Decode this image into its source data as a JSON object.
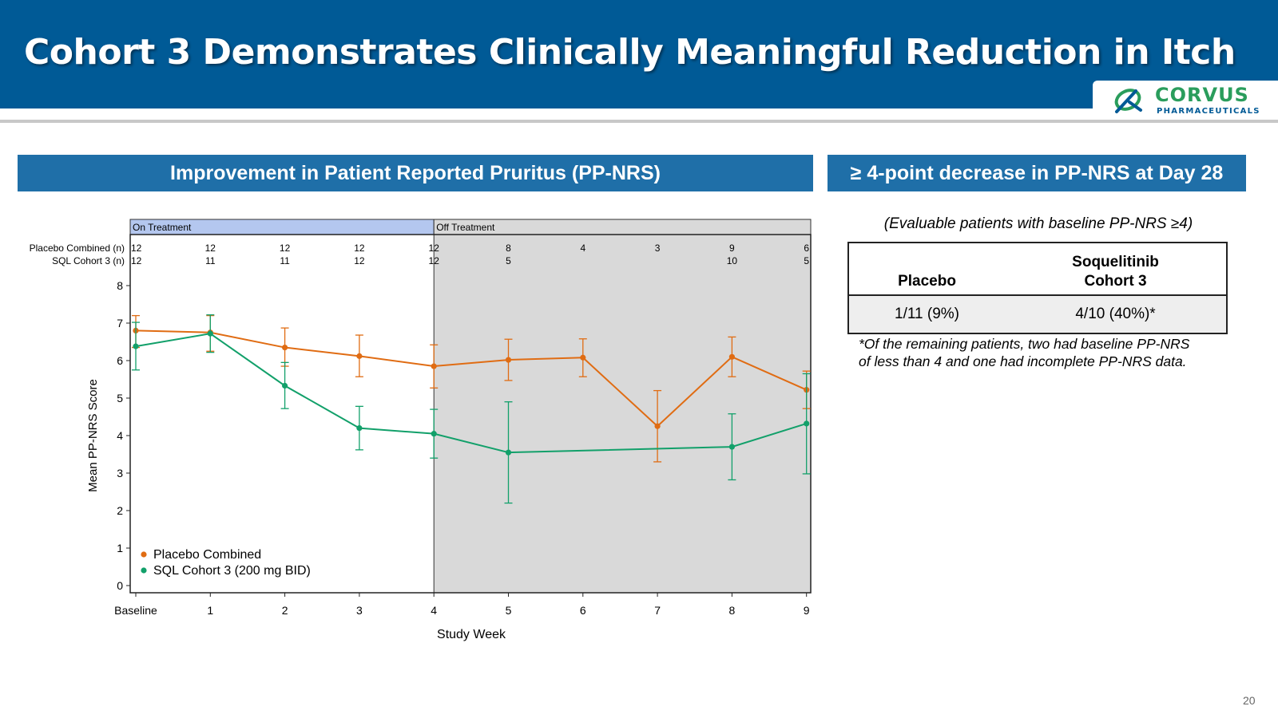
{
  "header": {
    "title": "Cohort 3 Demonstrates Clinically Meaningful Reduction in Itch",
    "logo_name": "CORVUS",
    "logo_subtitle": "PHARMACEUTICALS",
    "background_color": "#005a96"
  },
  "left_section": {
    "heading": "Improvement in Patient Reported Pruritus (PP-NRS)"
  },
  "right_section": {
    "heading": "≥ 4-point decrease in PP-NRS at Day 28",
    "note": "(Evaluable patients with baseline PP-NRS ≥4)",
    "table": {
      "headers": [
        "Placebo",
        "Soquelitinib Cohort 3"
      ],
      "header_lines": [
        [
          "Placebo"
        ],
        [
          "Soquelitinib",
          "Cohort 3"
        ]
      ],
      "row": [
        "1/11 (9%)",
        "4/10 (40%)*"
      ]
    },
    "footnote_lines": [
      "*Of the remaining patients, two had baseline PP-NRS",
      "of less than 4 and one had incomplete PP-NRS data."
    ]
  },
  "chart_data": {
    "type": "line",
    "xlabel": "Study Week",
    "ylabel": "Mean PP-NRS Score",
    "x": [
      0,
      1,
      2,
      3,
      4,
      5,
      6,
      7,
      8,
      9
    ],
    "x_tick_labels": [
      "Baseline",
      "1",
      "2",
      "3",
      "4",
      "5",
      "6",
      "7",
      "8",
      "9"
    ],
    "ylim": [
      0,
      8
    ],
    "y_ticks": [
      0,
      1,
      2,
      3,
      4,
      5,
      6,
      7,
      8
    ],
    "grid": false,
    "legend_position": "bottom-left",
    "regions": [
      {
        "label": "On Treatment",
        "x_range": [
          0,
          4
        ],
        "color": "#b4c7ef"
      },
      {
        "label": "Off Treatment",
        "x_range": [
          4,
          9
        ],
        "color": "#d9d9d9"
      }
    ],
    "n_at_risk": [
      {
        "label": "Placebo Combined (n)",
        "values": [
          "12",
          "12",
          "12",
          "12",
          "12",
          "8",
          "4",
          "3",
          "9",
          "6"
        ]
      },
      {
        "label": "SQL Cohort 3 (n)",
        "values": [
          "12",
          "11",
          "11",
          "12",
          "12",
          "5",
          "",
          "",
          "10",
          "5"
        ]
      }
    ],
    "series": [
      {
        "name": "Placebo Combined",
        "color": "#e06c13",
        "x": [
          0,
          1,
          2,
          3,
          4,
          5,
          6,
          7,
          8,
          9
        ],
        "y": [
          6.8,
          6.75,
          6.35,
          6.12,
          5.85,
          6.02,
          6.08,
          4.25,
          6.1,
          5.22
        ],
        "err_low": [
          6.35,
          6.25,
          5.85,
          5.57,
          5.27,
          5.47,
          5.57,
          3.3,
          5.57,
          4.72
        ],
        "err_high": [
          7.2,
          7.2,
          6.87,
          6.68,
          6.42,
          6.57,
          6.58,
          5.2,
          6.63,
          5.72
        ]
      },
      {
        "name": "SQL Cohort 3 (200 mg BID)",
        "color": "#12a06a",
        "x": [
          0,
          1,
          2,
          3,
          4,
          5,
          8,
          9
        ],
        "y": [
          6.38,
          6.72,
          5.33,
          4.2,
          4.05,
          3.55,
          3.7,
          4.32
        ],
        "err_low": [
          5.75,
          6.22,
          4.72,
          3.62,
          3.4,
          2.2,
          2.82,
          2.98
        ],
        "err_high": [
          7.02,
          7.22,
          5.95,
          4.78,
          4.7,
          4.9,
          4.58,
          5.65
        ]
      }
    ]
  },
  "page_number": "20"
}
